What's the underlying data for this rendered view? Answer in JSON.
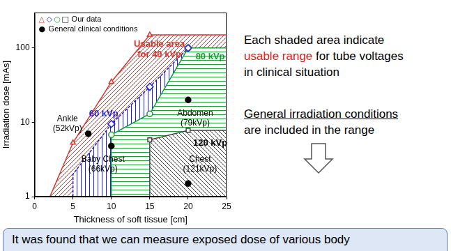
{
  "chart_data": {
    "type": "scatter",
    "x_label": "Thickness of soft tissue [cm]",
    "y_label": "Irradiation dose [mAs]",
    "xlim": [
      0,
      25
    ],
    "xticks": [
      0,
      5,
      10,
      15,
      20,
      25
    ],
    "ylim": [
      1,
      300
    ],
    "yticks": [
      1,
      10,
      100
    ],
    "log": "y",
    "grid": false,
    "legend": "upper left",
    "legend_entries": [
      {
        "label": "Our data",
        "symbols": [
          "△",
          "◇",
          "○",
          "□"
        ]
      },
      {
        "label": "General clinical conditions",
        "symbols": [
          "●"
        ]
      }
    ],
    "series": [
      {
        "name": [
          "Usable area",
          "for 40 kVp"
        ],
        "color": "#e0312b",
        "marker": "triangle",
        "x": [
          5,
          10,
          15
        ],
        "values": [
          5.3,
          35,
          150
        ],
        "area_x": [
          2,
          5,
          10,
          15,
          25,
          25
        ],
        "area_y": [
          1,
          5.3,
          35,
          150,
          150,
          1
        ]
      },
      {
        "name": [
          "60 kVp"
        ],
        "color": "#2222cc",
        "marker": "diamond",
        "x": [
          10,
          15,
          20
        ],
        "values": [
          9.5,
          30,
          100
        ],
        "area_x": [
          5,
          5,
          10,
          15,
          20,
          25,
          25
        ],
        "area_y": [
          1,
          2,
          9.5,
          30,
          100,
          100,
          1
        ]
      },
      {
        "name": [
          "80 kVp"
        ],
        "color": "#1a9a30",
        "marker": "circle",
        "x": [
          10,
          15,
          20
        ],
        "values": [
          6.8,
          13,
          100
        ],
        "area_x": [
          10,
          10,
          15,
          20,
          25,
          25
        ],
        "area_y": [
          1,
          6.8,
          13,
          100,
          100,
          1
        ]
      },
      {
        "name": [
          "120 kVp"
        ],
        "color": "#404040",
        "marker": "square",
        "x": [
          15,
          20
        ],
        "values": [
          5.8,
          7.8
        ],
        "area_x": [
          15,
          15,
          20,
          25,
          25
        ],
        "area_y": [
          1,
          5.8,
          7.8,
          7.8,
          1
        ]
      },
      {
        "color": "#000000",
        "marker": "dot",
        "x": [
          7,
          10,
          20,
          20
        ],
        "values": [
          7,
          4.8,
          20,
          1.5
        ],
        "point_labels": [
          [
            "Ankle",
            "(52kVp)"
          ],
          [
            "Baby Chest",
            "(66kVp)"
          ],
          [
            "Abdomen",
            "(79kVp)"
          ],
          [
            "Chest",
            "(121kVp)"
          ]
        ]
      }
    ]
  },
  "notes": [
    {
      "lines": [
        "Each shaded area indicate",
        "usable range for tube voltages",
        "in clinical situation"
      ],
      "highlight": "usable range"
    },
    {
      "lines": [
        "General irradiation conditions",
        "are included in the range"
      ],
      "underline": "General irradiation conditions"
    }
  ],
  "conclusion": "It was found that we can measure exposed dose of various body"
}
